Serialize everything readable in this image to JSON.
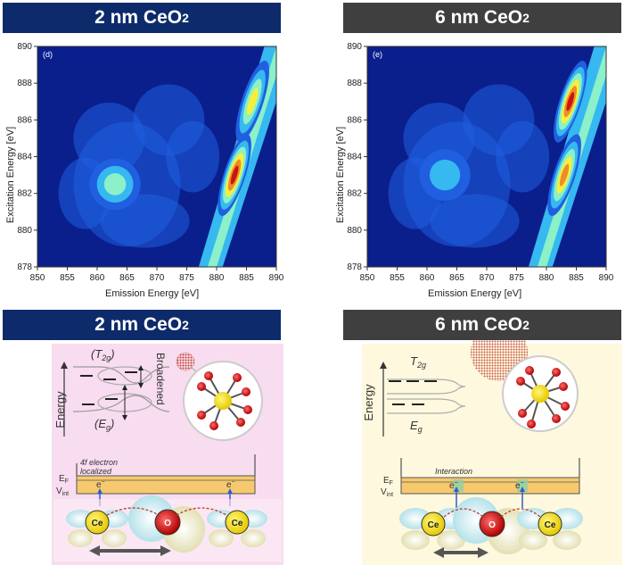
{
  "left": {
    "banner_prefix": "2 nm CeO",
    "banner_sub": "2",
    "panel_letter": "(d)",
    "diagram": {
      "level_top": "(T",
      "level_top_sub": "2g",
      "level_top_close": ")",
      "level_bottom": "(E",
      "level_bottom_sub": "g",
      "level_bottom_close": ")",
      "broadened": "Broadened",
      "energy": "Energy",
      "electron_note_line1": "4f electron",
      "electron_note_line2": "localized",
      "ef": "E",
      "ef_sub": "F",
      "vint": "V",
      "vint_sub": "int",
      "electron": "e",
      "ce": "Ce",
      "o": "O"
    }
  },
  "right": {
    "banner_prefix": "6 nm CeO",
    "banner_sub": "2",
    "panel_letter": "(e)",
    "diagram": {
      "level_top": "T",
      "level_top_sub": "2g",
      "level_bottom": "E",
      "level_bottom_sub": "g",
      "energy": "Energy",
      "interaction": "Interaction",
      "ef": "E",
      "ef_sub": "F",
      "vint": "V",
      "vint_sub": "int",
      "electron": "e",
      "ce": "Ce",
      "o": "O"
    }
  },
  "chart_data": [
    {
      "type": "heatmap",
      "panel": "(d)",
      "xlabel": "Emission Energy [eV]",
      "ylabel": "Excitation Energy [eV]",
      "xlim": [
        850,
        890
      ],
      "ylim": [
        878,
        890
      ],
      "xticks": [
        850,
        855,
        860,
        865,
        870,
        875,
        880,
        885,
        890
      ],
      "yticks": [
        878,
        880,
        882,
        884,
        886,
        888,
        890
      ],
      "colormap": [
        "#0a1e8c",
        "#1f5fe0",
        "#36b8f0",
        "#8cf0c8",
        "#f5f03c",
        "#f08c28",
        "#c81414"
      ],
      "features": [
        {
          "emission": 883,
          "excitation": 883,
          "intensity": 1.0
        },
        {
          "emission": 886,
          "excitation": 887,
          "intensity": 0.65
        },
        {
          "emission": 863,
          "excitation": 882.5,
          "intensity": 0.45
        }
      ]
    },
    {
      "type": "heatmap",
      "panel": "(e)",
      "xlabel": "Emission Energy [eV]",
      "ylabel": "Excitation Energy [eV]",
      "xlim": [
        850,
        890
      ],
      "ylim": [
        878,
        890
      ],
      "xticks": [
        850,
        855,
        860,
        865,
        870,
        875,
        880,
        885,
        890
      ],
      "yticks": [
        878,
        880,
        882,
        884,
        886,
        888,
        890
      ],
      "colormap": [
        "#0a1e8c",
        "#1f5fe0",
        "#36b8f0",
        "#8cf0c8",
        "#f5f03c",
        "#f08c28",
        "#c81414"
      ],
      "features": [
        {
          "emission": 883,
          "excitation": 883,
          "intensity": 0.9
        },
        {
          "emission": 884,
          "excitation": 887,
          "intensity": 1.0
        },
        {
          "emission": 863,
          "excitation": 883,
          "intensity": 0.4
        }
      ]
    }
  ]
}
